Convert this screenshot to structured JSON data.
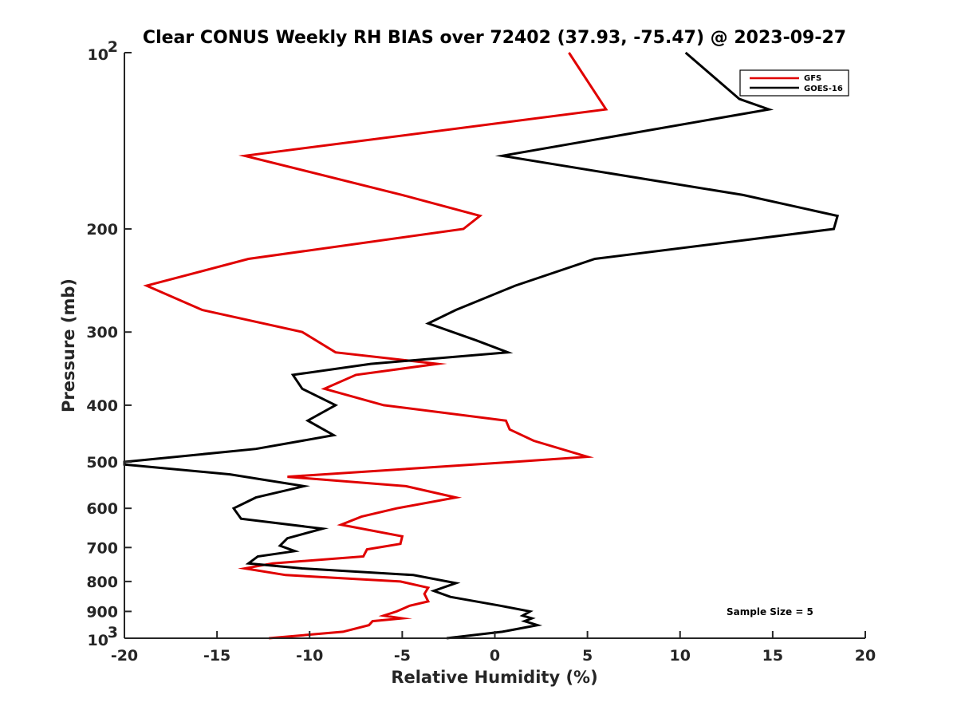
{
  "chart_data": {
    "type": "line",
    "title": "Clear CONUS Weekly RH BIAS over 72402 (37.93, -75.47) @ 2023-09-27",
    "xlabel": "Relative Humidity (%)",
    "ylabel": "Pressure (mb)",
    "xlim": [
      -20,
      20
    ],
    "ylim": [
      100,
      1000
    ],
    "yscale": "log",
    "y_reversed": true,
    "x_ticks": [
      "-20",
      "-15",
      "-10",
      "-5",
      "0",
      "5",
      "10",
      "15",
      "20"
    ],
    "y_ticks": [
      {
        "value": 100,
        "base": "10",
        "exp": "2"
      },
      {
        "value": 200,
        "label": "200"
      },
      {
        "value": 300,
        "label": "300"
      },
      {
        "value": 400,
        "label": "400"
      },
      {
        "value": 500,
        "label": "500"
      },
      {
        "value": 600,
        "label": "600"
      },
      {
        "value": 700,
        "label": "700"
      },
      {
        "value": 800,
        "label": "800"
      },
      {
        "value": 900,
        "label": "900"
      },
      {
        "value": 1000,
        "base": "10",
        "exp": "3"
      }
    ],
    "legend_position": "top-right",
    "series": [
      {
        "name": "GFS",
        "color": "#e00000",
        "points": [
          [
            4.0,
            100
          ],
          [
            6.0,
            125
          ],
          [
            -13.5,
            150
          ],
          [
            -5.0,
            175
          ],
          [
            -0.8,
            190
          ],
          [
            -1.7,
            200
          ],
          [
            -13.3,
            225
          ],
          [
            -18.8,
            250
          ],
          [
            -15.8,
            275
          ],
          [
            -10.4,
            300
          ],
          [
            -8.6,
            325
          ],
          [
            -3.1,
            340
          ],
          [
            -7.5,
            355
          ],
          [
            -9.2,
            375
          ],
          [
            -6.0,
            400
          ],
          [
            0.6,
            425
          ],
          [
            0.8,
            440
          ],
          [
            2.1,
            460
          ],
          [
            5.0,
            490
          ],
          [
            1.0,
            500
          ],
          [
            -11.2,
            530
          ],
          [
            -4.8,
            550
          ],
          [
            -2.1,
            575
          ],
          [
            -5.3,
            600
          ],
          [
            -7.2,
            620
          ],
          [
            -8.3,
            640
          ],
          [
            -5.0,
            670
          ],
          [
            -5.1,
            690
          ],
          [
            -6.9,
            705
          ],
          [
            -7.1,
            725
          ],
          [
            -12.0,
            745
          ],
          [
            -13.5,
            760
          ],
          [
            -11.3,
            780
          ],
          [
            -5.1,
            800
          ],
          [
            -3.6,
            820
          ],
          [
            -3.8,
            840
          ],
          [
            -3.6,
            865
          ],
          [
            -4.6,
            880
          ],
          [
            -5.3,
            900
          ],
          [
            -6.0,
            915
          ],
          [
            -5.0,
            925
          ],
          [
            -6.6,
            935
          ],
          [
            -6.8,
            950
          ],
          [
            -8.2,
            975
          ],
          [
            -12.2,
            1000
          ]
        ]
      },
      {
        "name": "GOES-16",
        "color": "#000000",
        "points": [
          [
            10.3,
            100
          ],
          [
            13.2,
            120
          ],
          [
            14.8,
            125
          ],
          [
            0.4,
            150
          ],
          [
            13.4,
            175
          ],
          [
            18.5,
            190
          ],
          [
            18.3,
            200
          ],
          [
            5.4,
            225
          ],
          [
            1.1,
            250
          ],
          [
            -2.1,
            275
          ],
          [
            -3.6,
            290
          ],
          [
            -1.0,
            310
          ],
          [
            0.7,
            325
          ],
          [
            -6.7,
            340
          ],
          [
            -10.9,
            355
          ],
          [
            -10.4,
            375
          ],
          [
            -8.6,
            400
          ],
          [
            -10.1,
            425
          ],
          [
            -8.7,
            450
          ],
          [
            -12.9,
            475
          ],
          [
            -20.0,
            500
          ],
          [
            -20.0,
            505
          ],
          [
            -14.3,
            525
          ],
          [
            -10.3,
            550
          ],
          [
            -12.9,
            575
          ],
          [
            -14.1,
            600
          ],
          [
            -13.7,
            625
          ],
          [
            -9.3,
            650
          ],
          [
            -11.2,
            675
          ],
          [
            -11.6,
            695
          ],
          [
            -10.8,
            710
          ],
          [
            -12.8,
            725
          ],
          [
            -13.3,
            745
          ],
          [
            -10.4,
            760
          ],
          [
            -4.4,
            780
          ],
          [
            -2.1,
            805
          ],
          [
            -3.3,
            830
          ],
          [
            -2.4,
            850
          ],
          [
            0.3,
            880
          ],
          [
            1.9,
            900
          ],
          [
            1.5,
            915
          ],
          [
            2.0,
            925
          ],
          [
            1.6,
            935
          ],
          [
            2.3,
            950
          ],
          [
            0.4,
            975
          ],
          [
            -2.6,
            1000
          ]
        ]
      }
    ],
    "annotation": "Sample Size = 5"
  }
}
